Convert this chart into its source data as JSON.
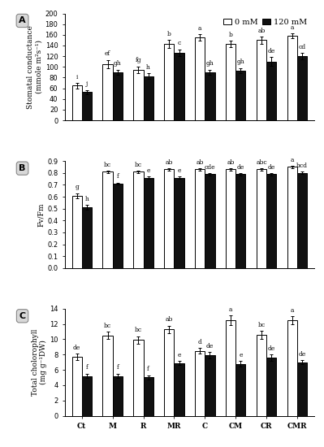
{
  "categories": [
    "Ct",
    "M",
    "R",
    "MR",
    "C",
    "CM",
    "CR",
    "CMR"
  ],
  "panel_A": {
    "title": "A",
    "ylabel": "Stomatal conductance\n(mmole m²s⁻¹)",
    "ylim": [
      0,
      200
    ],
    "yticks": [
      0,
      20,
      40,
      60,
      80,
      100,
      120,
      140,
      160,
      180,
      200
    ],
    "white_bars": [
      65,
      105,
      95,
      143,
      155,
      143,
      150,
      158
    ],
    "black_bars": [
      53,
      90,
      83,
      127,
      90,
      93,
      110,
      120
    ],
    "white_err": [
      5,
      8,
      6,
      7,
      6,
      6,
      7,
      5
    ],
    "black_err": [
      4,
      5,
      5,
      6,
      5,
      5,
      8,
      6
    ],
    "white_labels": [
      "i",
      "ef",
      "fg",
      "b",
      "a",
      "b",
      "ab",
      "a"
    ],
    "black_labels": [
      "j",
      "gh",
      "h",
      "c",
      "gh",
      "gh",
      "de",
      "cd"
    ]
  },
  "panel_B": {
    "title": "B",
    "ylabel": "Fv/Fm",
    "ylim": [
      0.0,
      0.9
    ],
    "yticks": [
      0.0,
      0.1,
      0.2,
      0.3,
      0.4,
      0.5,
      0.6,
      0.7,
      0.8,
      0.9
    ],
    "white_bars": [
      0.61,
      0.81,
      0.81,
      0.83,
      0.83,
      0.83,
      0.83,
      0.85
    ],
    "black_bars": [
      0.51,
      0.71,
      0.76,
      0.76,
      0.79,
      0.79,
      0.79,
      0.8
    ],
    "white_err": [
      0.02,
      0.01,
      0.01,
      0.01,
      0.01,
      0.01,
      0.01,
      0.01
    ],
    "black_err": [
      0.02,
      0.01,
      0.01,
      0.01,
      0.01,
      0.01,
      0.01,
      0.01
    ],
    "white_labels": [
      "g",
      "bc",
      "bc",
      "ab",
      "ab",
      "ab",
      "abc",
      "a"
    ],
    "black_labels": [
      "h",
      "f",
      "e",
      "e",
      "cde",
      "de",
      "de",
      "bcd"
    ]
  },
  "panel_C": {
    "title": "C",
    "ylabel": "Total cholorophyll\n(mg g⁻¹DW)",
    "ylim": [
      0,
      14
    ],
    "yticks": [
      0,
      2,
      4,
      6,
      8,
      10,
      12,
      14
    ],
    "white_bars": [
      7.7,
      10.5,
      9.9,
      11.3,
      8.5,
      12.5,
      10.6,
      12.5
    ],
    "black_bars": [
      5.2,
      5.2,
      5.0,
      6.9,
      7.9,
      6.8,
      7.6,
      7.0
    ],
    "white_err": [
      0.4,
      0.5,
      0.5,
      0.5,
      0.4,
      0.6,
      0.5,
      0.5
    ],
    "black_err": [
      0.3,
      0.3,
      0.3,
      0.3,
      0.4,
      0.4,
      0.4,
      0.3
    ],
    "white_labels": [
      "de",
      "bc",
      "bc",
      "ab",
      "d",
      "a",
      "bc",
      "a"
    ],
    "black_labels": [
      "f",
      "f",
      "f",
      "e",
      "de",
      "e",
      "de",
      "de"
    ]
  },
  "legend_labels": [
    "0 mM",
    "120 mM"
  ],
  "white_color": "#FFFFFF",
  "black_color": "#111111",
  "bar_edge_color": "#000000",
  "bar_width": 0.32,
  "label_fontsize": 5.5,
  "axis_label_fontsize": 6.5,
  "tick_fontsize": 6.0,
  "legend_fontsize": 7.0,
  "panel_label_fontsize": 8,
  "background_color": "#d8d8d8"
}
